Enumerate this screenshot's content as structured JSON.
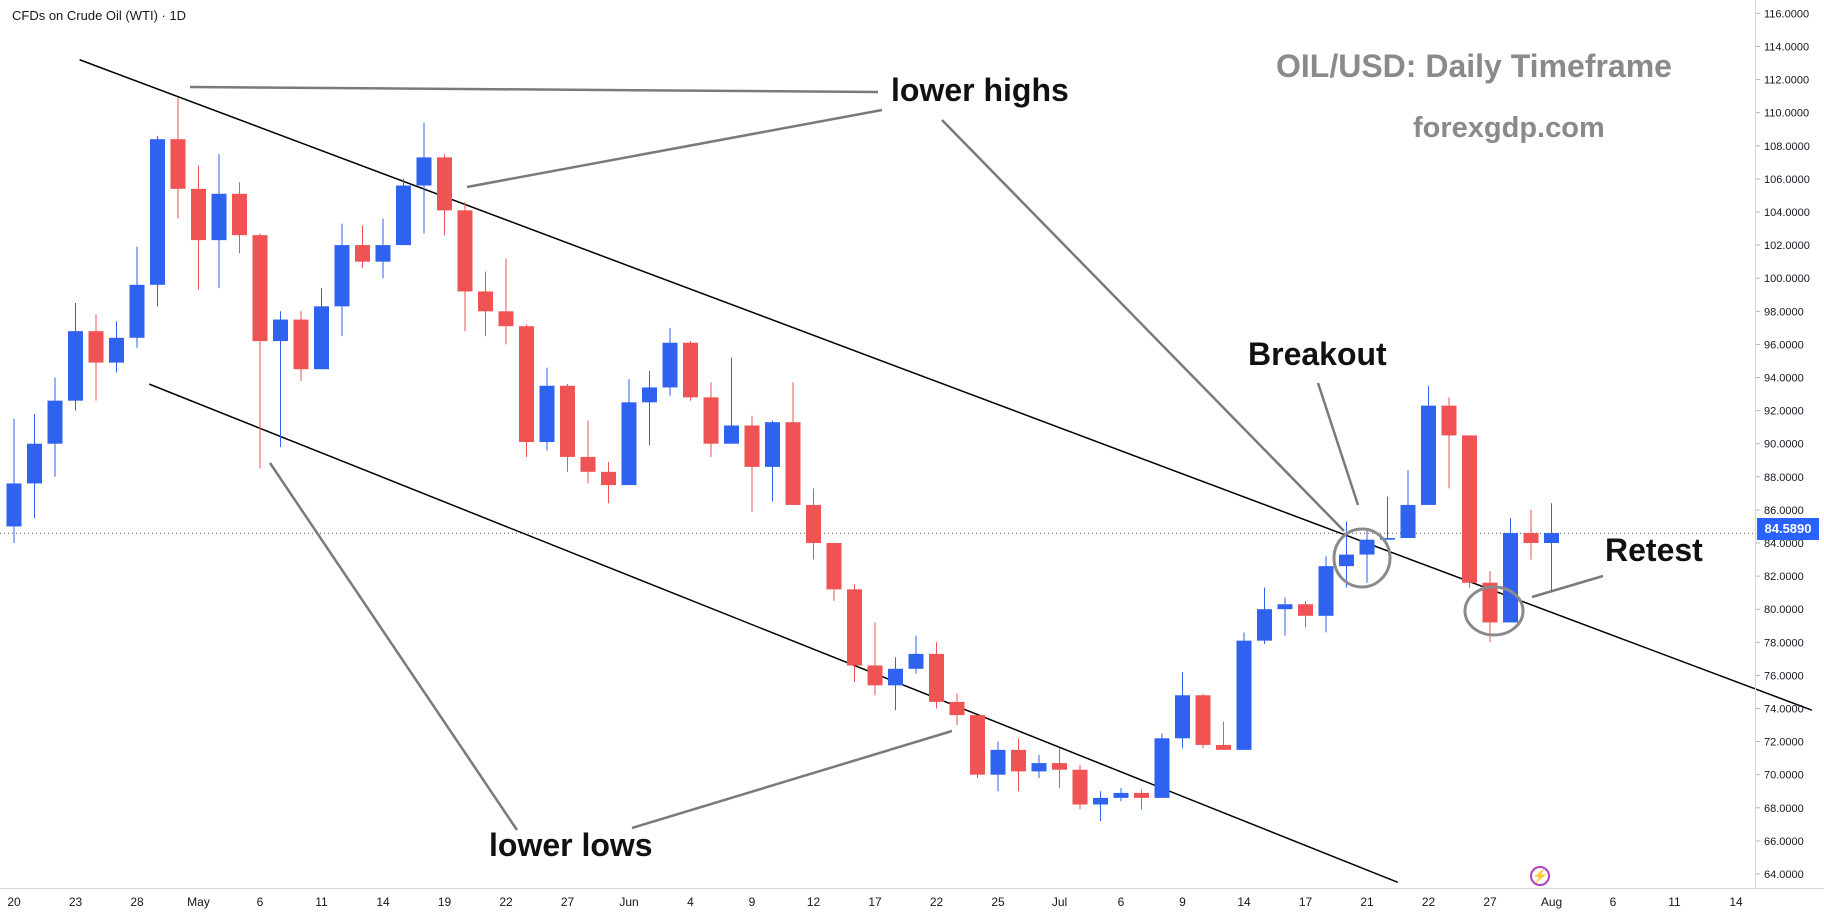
{
  "header": {
    "symbol": "CFDs on Crude Oil (WTI) · 1D",
    "title": "OIL/USD: Daily Timeframe",
    "subtitle": "forexgdp.com"
  },
  "annotations": {
    "lower_highs": "lower highs",
    "lower_lows": "lower lows",
    "breakout": "Breakout",
    "retest": "Retest"
  },
  "price_scale": {
    "current_price_label": "84.5890",
    "current_price": 84.589
  },
  "icons": [
    "lightning-icon"
  ],
  "colors": {
    "bull": "#2f63ef",
    "bear": "#ef5353",
    "price_label": "#2962ff",
    "trendline": "#000000",
    "callout_line": "#7a7a7a",
    "watermark_text": "#8a8a8a"
  },
  "chart_data": {
    "type": "candlestick",
    "y_axis": {
      "range": [
        63,
        116
      ],
      "ticks": [
        "64.0000",
        "66.0000",
        "68.0000",
        "70.0000",
        "72.0000",
        "74.0000",
        "76.0000",
        "78.0000",
        "80.0000",
        "82.0000",
        "84.0000",
        "86.0000",
        "88.0000",
        "90.0000",
        "92.0000",
        "94.0000",
        "96.0000",
        "98.0000",
        "100.0000",
        "102.0000",
        "104.0000",
        "106.0000",
        "108.0000",
        "110.0000",
        "112.0000",
        "114.0000",
        "116.0000"
      ],
      "position": "right"
    },
    "x_axis": {
      "tick_labels": [
        {
          "label": "20",
          "index": 0
        },
        {
          "label": "23",
          "index": 3
        },
        {
          "label": "28",
          "index": 6
        },
        {
          "label": "May",
          "index": 9
        },
        {
          "label": "6",
          "index": 12
        },
        {
          "label": "11",
          "index": 15
        },
        {
          "label": "14",
          "index": 18
        },
        {
          "label": "19",
          "index": 21
        },
        {
          "label": "22",
          "index": 24
        },
        {
          "label": "27",
          "index": 27
        },
        {
          "label": "Jun",
          "index": 30
        },
        {
          "label": "4",
          "index": 33
        },
        {
          "label": "9",
          "index": 36
        },
        {
          "label": "12",
          "index": 39
        },
        {
          "label": "17",
          "index": 42
        },
        {
          "label": "22",
          "index": 45
        },
        {
          "label": "25",
          "index": 48
        },
        {
          "label": "Jul",
          "index": 51
        },
        {
          "label": "6",
          "index": 54
        },
        {
          "label": "9",
          "index": 57
        },
        {
          "label": "14",
          "index": 60
        },
        {
          "label": "17",
          "index": 63
        },
        {
          "label": "21",
          "index": 66
        },
        {
          "label": "22",
          "index": 69
        },
        {
          "label": "27",
          "index": 72
        },
        {
          "label": "Aug",
          "index": 75
        },
        {
          "label": "6",
          "index": 78
        },
        {
          "label": "11",
          "index": 81
        },
        {
          "label": "14",
          "index": 84
        }
      ]
    },
    "candles": [
      {
        "o": 85.0,
        "h": 91.5,
        "l": 84.0,
        "c": 87.6
      },
      {
        "o": 87.6,
        "h": 91.8,
        "l": 85.5,
        "c": 90.0
      },
      {
        "o": 90.0,
        "h": 94.0,
        "l": 88.0,
        "c": 92.6
      },
      {
        "o": 92.6,
        "h": 98.5,
        "l": 92.0,
        "c": 96.8
      },
      {
        "o": 96.8,
        "h": 97.8,
        "l": 92.6,
        "c": 94.9
      },
      {
        "o": 94.9,
        "h": 97.4,
        "l": 94.3,
        "c": 96.4
      },
      {
        "o": 96.4,
        "h": 101.9,
        "l": 95.8,
        "c": 99.6
      },
      {
        "o": 99.6,
        "h": 108.6,
        "l": 98.3,
        "c": 108.4
      },
      {
        "o": 108.4,
        "h": 110.9,
        "l": 103.6,
        "c": 105.4
      },
      {
        "o": 105.4,
        "h": 106.8,
        "l": 99.3,
        "c": 102.3
      },
      {
        "o": 102.3,
        "h": 107.5,
        "l": 99.4,
        "c": 105.1
      },
      {
        "o": 105.1,
        "h": 105.8,
        "l": 101.5,
        "c": 102.6
      },
      {
        "o": 102.6,
        "h": 102.7,
        "l": 88.5,
        "c": 96.2
      },
      {
        "o": 96.2,
        "h": 98.0,
        "l": 89.8,
        "c": 97.5
      },
      {
        "o": 97.5,
        "h": 98.0,
        "l": 93.8,
        "c": 94.5
      },
      {
        "o": 94.5,
        "h": 99.4,
        "l": 94.5,
        "c": 98.3
      },
      {
        "o": 98.3,
        "h": 103.3,
        "l": 96.5,
        "c": 102.0
      },
      {
        "o": 102.0,
        "h": 103.2,
        "l": 100.6,
        "c": 101.0
      },
      {
        "o": 101.0,
        "h": 103.6,
        "l": 100.0,
        "c": 102.0
      },
      {
        "o": 102.0,
        "h": 106.0,
        "l": 102.0,
        "c": 105.6
      },
      {
        "o": 105.6,
        "h": 109.4,
        "l": 102.7,
        "c": 107.3
      },
      {
        "o": 107.3,
        "h": 107.5,
        "l": 102.6,
        "c": 104.1
      },
      {
        "o": 104.1,
        "h": 104.6,
        "l": 96.8,
        "c": 99.2
      },
      {
        "o": 99.2,
        "h": 100.4,
        "l": 96.5,
        "c": 98.0
      },
      {
        "o": 98.0,
        "h": 101.2,
        "l": 96.0,
        "c": 97.1
      },
      {
        "o": 97.1,
        "h": 97.2,
        "l": 89.2,
        "c": 90.1
      },
      {
        "o": 90.1,
        "h": 94.6,
        "l": 89.6,
        "c": 93.5
      },
      {
        "o": 93.5,
        "h": 93.6,
        "l": 88.3,
        "c": 89.2
      },
      {
        "o": 89.2,
        "h": 91.4,
        "l": 87.6,
        "c": 88.3
      },
      {
        "o": 88.3,
        "h": 88.9,
        "l": 86.4,
        "c": 87.5
      },
      {
        "o": 87.5,
        "h": 93.9,
        "l": 87.5,
        "c": 92.5
      },
      {
        "o": 92.5,
        "h": 94.4,
        "l": 89.9,
        "c": 93.4
      },
      {
        "o": 93.4,
        "h": 97.0,
        "l": 92.9,
        "c": 96.1
      },
      {
        "o": 96.1,
        "h": 96.2,
        "l": 92.6,
        "c": 92.8
      },
      {
        "o": 92.8,
        "h": 93.7,
        "l": 89.2,
        "c": 90.0
      },
      {
        "o": 90.0,
        "h": 95.2,
        "l": 90.0,
        "c": 91.1
      },
      {
        "o": 91.1,
        "h": 91.7,
        "l": 85.9,
        "c": 88.6
      },
      {
        "o": 88.6,
        "h": 91.4,
        "l": 86.5,
        "c": 91.3
      },
      {
        "o": 91.3,
        "h": 93.7,
        "l": 86.6,
        "c": 86.3
      },
      {
        "o": 86.3,
        "h": 87.3,
        "l": 83.0,
        "c": 84.0
      },
      {
        "o": 84.0,
        "h": 84.0,
        "l": 80.5,
        "c": 81.2
      },
      {
        "o": 81.2,
        "h": 81.5,
        "l": 75.6,
        "c": 76.6
      },
      {
        "o": 76.6,
        "h": 79.2,
        "l": 74.8,
        "c": 75.4
      },
      {
        "o": 75.4,
        "h": 77.1,
        "l": 73.9,
        "c": 76.4
      },
      {
        "o": 76.4,
        "h": 78.4,
        "l": 76.1,
        "c": 77.3
      },
      {
        "o": 77.3,
        "h": 78.0,
        "l": 74.0,
        "c": 74.4
      },
      {
        "o": 74.4,
        "h": 74.9,
        "l": 73.0,
        "c": 73.6
      },
      {
        "o": 73.6,
        "h": 73.6,
        "l": 69.8,
        "c": 70.0
      },
      {
        "o": 70.0,
        "h": 72.0,
        "l": 69.0,
        "c": 71.5
      },
      {
        "o": 71.5,
        "h": 72.2,
        "l": 69.0,
        "c": 70.2
      },
      {
        "o": 70.2,
        "h": 71.2,
        "l": 69.8,
        "c": 70.7
      },
      {
        "o": 70.7,
        "h": 71.6,
        "l": 69.2,
        "c": 70.3
      },
      {
        "o": 70.3,
        "h": 70.6,
        "l": 67.9,
        "c": 68.2
      },
      {
        "o": 68.2,
        "h": 69.0,
        "l": 67.2,
        "c": 68.6
      },
      {
        "o": 68.6,
        "h": 69.2,
        "l": 68.4,
        "c": 68.9
      },
      {
        "o": 68.9,
        "h": 69.1,
        "l": 67.9,
        "c": 68.6
      },
      {
        "o": 68.6,
        "h": 72.5,
        "l": 68.6,
        "c": 72.2
      },
      {
        "o": 72.2,
        "h": 76.2,
        "l": 71.6,
        "c": 74.8
      },
      {
        "o": 74.8,
        "h": 74.9,
        "l": 71.6,
        "c": 71.8
      },
      {
        "o": 71.8,
        "h": 73.2,
        "l": 71.5,
        "c": 71.5
      },
      {
        "o": 71.5,
        "h": 78.6,
        "l": 71.5,
        "c": 78.1
      },
      {
        "o": 78.1,
        "h": 81.3,
        "l": 77.9,
        "c": 80.0
      },
      {
        "o": 80.0,
        "h": 80.7,
        "l": 78.4,
        "c": 80.3
      },
      {
        "o": 80.3,
        "h": 80.5,
        "l": 78.9,
        "c": 79.6
      },
      {
        "o": 79.6,
        "h": 83.2,
        "l": 78.6,
        "c": 82.6
      },
      {
        "o": 82.6,
        "h": 85.3,
        "l": 81.3,
        "c": 83.3
      },
      {
        "o": 83.3,
        "h": 84.8,
        "l": 81.6,
        "c": 84.2
      },
      {
        "o": 84.2,
        "h": 86.8,
        "l": 84.2,
        "c": 84.3
      },
      {
        "o": 84.3,
        "h": 88.4,
        "l": 84.3,
        "c": 86.3
      },
      {
        "o": 86.3,
        "h": 93.5,
        "l": 86.3,
        "c": 92.3
      },
      {
        "o": 92.3,
        "h": 92.8,
        "l": 87.3,
        "c": 90.5
      },
      {
        "o": 90.5,
        "h": 90.5,
        "l": 81.3,
        "c": 81.6
      },
      {
        "o": 81.6,
        "h": 82.3,
        "l": 78.0,
        "c": 79.2
      },
      {
        "o": 79.2,
        "h": 85.5,
        "l": 79.2,
        "c": 84.6
      },
      {
        "o": 84.6,
        "h": 86.0,
        "l": 83.0,
        "c": 84.0
      },
      {
        "o": 84.0,
        "h": 86.4,
        "l": 81.1,
        "c": 84.6
      }
    ],
    "trendlines": [
      {
        "name": "upper",
        "from": {
          "index": 3.2,
          "price": 113.2
        },
        "to": {
          "index": 87.7,
          "price": 73.9
        }
      },
      {
        "name": "lower",
        "from": {
          "index": 6.6,
          "price": 93.6
        },
        "to": {
          "index": 67.5,
          "price": 63.5
        }
      }
    ]
  }
}
